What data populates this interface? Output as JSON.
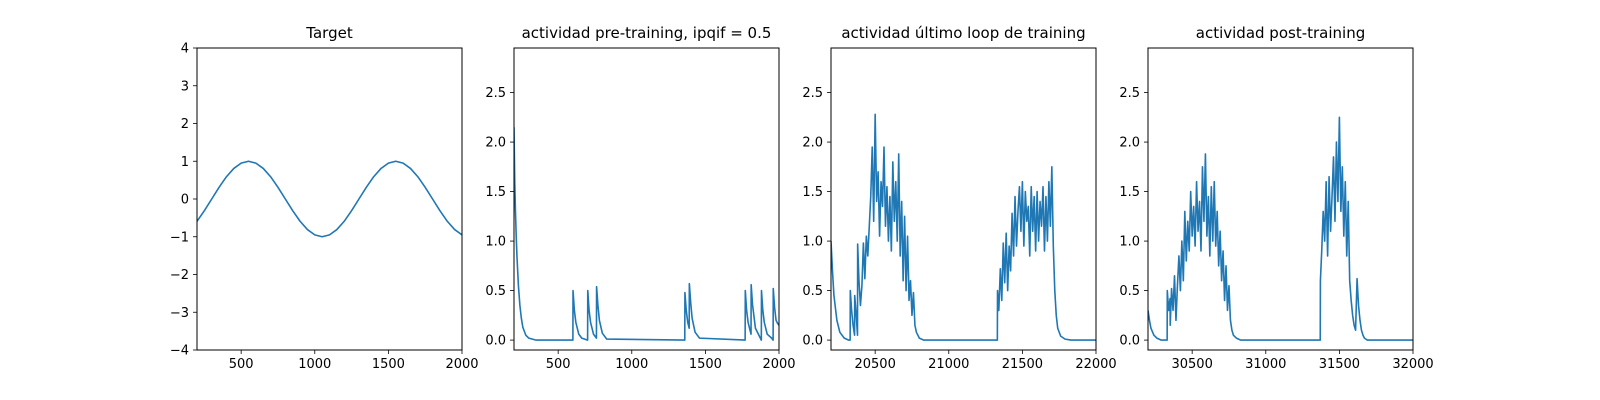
{
  "colors": {
    "series": "#1f77b4",
    "axes": "#000000",
    "background": "#ffffff"
  },
  "chart_data": [
    {
      "type": "line",
      "title": "Target",
      "xlim": [
        200,
        2000
      ],
      "ylim": [
        -4,
        4
      ],
      "x_ticks": [
        500,
        1000,
        1500,
        2000
      ],
      "x_tick_labels": [
        "500",
        "1000",
        "1500",
        "2000"
      ],
      "y_ticks": [
        -4,
        -3,
        -2,
        -1,
        0,
        1,
        2,
        3,
        4
      ],
      "y_tick_labels": [
        "−4",
        "−3",
        "−2",
        "−1",
        "0",
        "1",
        "2",
        "3",
        "4"
      ],
      "series": [
        {
          "x": [
            200,
            250,
            300,
            350,
            400,
            450,
            500,
            550,
            600,
            650,
            700,
            750,
            800,
            850,
            900,
            950,
            1000,
            1050,
            1100,
            1150,
            1200,
            1250,
            1300,
            1350,
            1400,
            1450,
            1500,
            1550,
            1600,
            1650,
            1700,
            1750,
            1800,
            1850,
            1900,
            1950,
            2000
          ],
          "y": [
            -0.59,
            -0.31,
            0.0,
            0.31,
            0.59,
            0.81,
            0.95,
            1.0,
            0.95,
            0.81,
            0.59,
            0.31,
            0.0,
            -0.31,
            -0.59,
            -0.81,
            -0.95,
            -1.0,
            -0.95,
            -0.81,
            -0.59,
            -0.31,
            0.0,
            0.31,
            0.59,
            0.81,
            0.95,
            1.0,
            0.95,
            0.81,
            0.59,
            0.31,
            0.0,
            -0.31,
            -0.59,
            -0.81,
            -0.95
          ]
        }
      ]
    },
    {
      "type": "line",
      "title": "actividad pre-training, ipqif = 0.5",
      "xlim": [
        200,
        2000
      ],
      "ylim": [
        -0.1,
        2.95
      ],
      "x_ticks": [
        500,
        1000,
        1500,
        2000
      ],
      "x_tick_labels": [
        "500",
        "1000",
        "1500",
        "2000"
      ],
      "y_ticks": [
        0.0,
        0.5,
        1.0,
        1.5,
        2.0,
        2.5
      ],
      "y_tick_labels": [
        "0.0",
        "0.5",
        "1.0",
        "1.5",
        "2.0",
        "2.5"
      ],
      "series": [
        {
          "x": [
            200,
            205,
            210,
            215,
            220,
            230,
            240,
            250,
            260,
            280,
            300,
            350,
            600,
            601,
            610,
            620,
            640,
            660,
            700,
            701,
            710,
            720,
            740,
            760,
            761,
            770,
            780,
            800,
            830,
            1360,
            1361,
            1370,
            1380,
            1390,
            1391,
            1400,
            1410,
            1430,
            1460,
            1770,
            1771,
            1780,
            1790,
            1810,
            1811,
            1820,
            1840,
            1870,
            1880,
            1881,
            1890,
            1900,
            1920,
            1950,
            1960,
            1961,
            1970,
            1980,
            1990,
            2000
          ],
          "y": [
            2.15,
            1.6,
            1.3,
            1.05,
            0.85,
            0.55,
            0.35,
            0.22,
            0.13,
            0.05,
            0.02,
            0.0,
            0.0,
            0.5,
            0.3,
            0.18,
            0.06,
            0.02,
            0.0,
            0.5,
            0.3,
            0.18,
            0.06,
            0.02,
            0.54,
            0.35,
            0.2,
            0.07,
            0.01,
            0.0,
            0.48,
            0.3,
            0.18,
            0.12,
            0.57,
            0.38,
            0.22,
            0.08,
            0.02,
            0.0,
            0.5,
            0.3,
            0.18,
            0.06,
            0.56,
            0.36,
            0.12,
            0.03,
            0.0,
            0.5,
            0.3,
            0.18,
            0.06,
            0.02,
            0.0,
            0.52,
            0.33,
            0.2,
            0.17,
            0.15
          ]
        }
      ]
    },
    {
      "type": "line",
      "title": "actividad último loop de training",
      "xlim": [
        20200,
        22000
      ],
      "ylim": [
        -0.1,
        2.95
      ],
      "x_ticks": [
        20500,
        21000,
        21500,
        22000
      ],
      "x_tick_labels": [
        "20500",
        "21000",
        "21500",
        "22000"
      ],
      "y_ticks": [
        0.0,
        0.5,
        1.0,
        1.5,
        2.0,
        2.5
      ],
      "y_tick_labels": [
        "0.0",
        "0.5",
        "1.0",
        "1.5",
        "2.0",
        "2.5"
      ],
      "series": [
        {
          "x": [
            20200,
            20210,
            20220,
            20240,
            20260,
            20290,
            20320,
            20330,
            20331,
            20340,
            20350,
            20360,
            20361,
            20370,
            20380,
            20381,
            20390,
            20400,
            20410,
            20420,
            20430,
            20440,
            20450,
            20460,
            20470,
            20480,
            20490,
            20500,
            20510,
            20520,
            20530,
            20540,
            20550,
            20560,
            20570,
            20580,
            20590,
            20600,
            20610,
            20620,
            20630,
            20640,
            20650,
            20660,
            20670,
            20680,
            20690,
            20700,
            20710,
            20720,
            20730,
            20740,
            20750,
            20760,
            20770,
            20780,
            20800,
            20830,
            20870,
            21330,
            21331,
            21340,
            21350,
            21360,
            21370,
            21380,
            21390,
            21400,
            21410,
            21420,
            21430,
            21440,
            21450,
            21460,
            21470,
            21480,
            21490,
            21500,
            21510,
            21520,
            21530,
            21540,
            21550,
            21560,
            21570,
            21580,
            21590,
            21600,
            21610,
            21620,
            21630,
            21640,
            21650,
            21660,
            21670,
            21680,
            21690,
            21700,
            21710,
            21720,
            21730,
            21740,
            21760,
            21790,
            21830,
            22000
          ],
          "y": [
            1.0,
            0.7,
            0.45,
            0.2,
            0.08,
            0.02,
            0.0,
            0.0,
            0.5,
            0.3,
            0.15,
            0.05,
            0.45,
            0.28,
            0.05,
            0.97,
            0.6,
            0.35,
            0.55,
            0.98,
            0.62,
            1.05,
            0.85,
            1.15,
            1.45,
            1.95,
            1.2,
            2.28,
            1.4,
            1.7,
            1.05,
            1.6,
            1.35,
            1.95,
            1.15,
            1.55,
            1.0,
            1.45,
            0.9,
            1.8,
            1.2,
            1.6,
            1.0,
            1.88,
            0.85,
            1.4,
            0.6,
            1.25,
            0.5,
            1.05,
            0.4,
            0.6,
            0.25,
            0.48,
            0.15,
            0.08,
            0.02,
            0.0,
            0.0,
            0.0,
            0.5,
            0.3,
            0.72,
            0.4,
            0.98,
            0.58,
            1.08,
            0.5,
            0.95,
            0.7,
            1.28,
            0.85,
            1.45,
            0.95,
            1.3,
            1.55,
            1.1,
            1.6,
            0.95,
            1.5,
            1.2,
            1.35,
            0.85,
            1.55,
            1.1,
            1.45,
            0.9,
            1.5,
            1.0,
            1.4,
            1.15,
            1.55,
            0.9,
            1.45,
            1.0,
            1.6,
            1.15,
            1.75,
            0.95,
            0.5,
            0.25,
            0.12,
            0.04,
            0.01,
            0.0,
            0.0
          ]
        }
      ]
    },
    {
      "type": "line",
      "title": "actividad post-training",
      "xlim": [
        30200,
        32000
      ],
      "ylim": [
        -0.1,
        2.95
      ],
      "x_ticks": [
        30500,
        31000,
        31500,
        32000
      ],
      "x_tick_labels": [
        "30500",
        "31000",
        "31500",
        "32000"
      ],
      "y_ticks": [
        0.0,
        0.5,
        1.0,
        1.5,
        2.0,
        2.5
      ],
      "y_tick_labels": [
        "0.0",
        "0.5",
        "1.0",
        "1.5",
        "2.0",
        "2.5"
      ],
      "series": [
        {
          "x": [
            30200,
            30210,
            30220,
            30240,
            30260,
            30290,
            30330,
            30331,
            30340,
            30350,
            30351,
            30360,
            30370,
            30380,
            30390,
            30400,
            30410,
            30420,
            30430,
            30440,
            30450,
            30460,
            30470,
            30480,
            30490,
            30500,
            30510,
            30520,
            30530,
            30540,
            30550,
            30560,
            30570,
            30580,
            30590,
            30600,
            30610,
            30620,
            30630,
            30640,
            30650,
            30660,
            30670,
            30680,
            30690,
            30700,
            30710,
            30720,
            30730,
            30740,
            30750,
            30760,
            30770,
            30780,
            30800,
            30830,
            30870,
            31370,
            31371,
            31380,
            31390,
            31400,
            31410,
            31420,
            31430,
            31440,
            31450,
            31460,
            31470,
            31480,
            31490,
            31500,
            31510,
            31520,
            31530,
            31540,
            31550,
            31560,
            31570,
            31580,
            31590,
            31600,
            31610,
            31620,
            31630,
            31640,
            31650,
            31660,
            31670,
            31680,
            31690,
            31700,
            31720,
            31750,
            31800,
            32000
          ],
          "y": [
            0.3,
            0.2,
            0.12,
            0.05,
            0.02,
            0.0,
            0.0,
            0.5,
            0.3,
            0.42,
            0.15,
            0.52,
            0.3,
            0.65,
            0.2,
            0.55,
            0.85,
            0.5,
            1.0,
            0.6,
            1.3,
            0.8,
            1.2,
            0.9,
            1.5,
            1.05,
            1.35,
            0.95,
            1.6,
            1.1,
            1.4,
            0.9,
            1.75,
            1.2,
            1.88,
            1.05,
            1.45,
            0.85,
            1.55,
            1.0,
            1.6,
            0.95,
            1.3,
            0.75,
            1.1,
            0.6,
            0.9,
            0.4,
            0.75,
            0.3,
            0.55,
            0.2,
            0.1,
            0.05,
            0.02,
            0.0,
            0.0,
            0.0,
            0.6,
            0.9,
            1.3,
            1.0,
            1.6,
            0.85,
            1.65,
            1.1,
            1.45,
            1.85,
            1.2,
            2.0,
            1.4,
            2.25,
            1.3,
            1.75,
            1.05,
            1.6,
            0.85,
            1.4,
            0.6,
            0.4,
            0.25,
            0.15,
            0.1,
            0.62,
            0.35,
            0.2,
            0.1,
            0.05,
            0.02,
            0.01,
            0.0,
            0.0,
            0.0,
            0.0,
            0.0,
            0.0
          ]
        }
      ]
    }
  ]
}
